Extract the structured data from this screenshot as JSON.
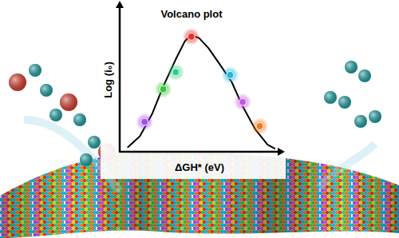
{
  "chart_data": {
    "type": "line",
    "title": "Volcano plot",
    "x_label": "ΔGH* (eV)",
    "y_label": "Log (i₀)",
    "xlim": [
      0,
      10
    ],
    "ylim": [
      0,
      10
    ],
    "tick_labels": false,
    "grid": false,
    "series": [
      {
        "type": "line",
        "color": "#000000",
        "line_style": "solid",
        "x": [
          0.5,
          1.3,
          2.1,
          2.8,
          3.6,
          4.2,
          4.6,
          5.1,
          5.7,
          6.4,
          7.2,
          7.9,
          8.7,
          9.5,
          10
        ],
        "values": [
          0.3,
          1.1,
          2.7,
          4.6,
          6.5,
          7.8,
          8.2,
          8.0,
          7.3,
          6.2,
          4.9,
          3.2,
          1.6,
          0.5,
          0.2
        ]
      },
      {
        "type": "scatter",
        "marker": "circle",
        "colors": [
          "#a64bf0",
          "#3cc43c",
          "#2ecf8a",
          "#e8302c",
          "#22b8e0",
          "#c855e0",
          "#f07a1e"
        ],
        "x": [
          1.6,
          2.8,
          3.6,
          4.6,
          7.1,
          7.9,
          9.0
        ],
        "values": [
          2.1,
          4.4,
          5.6,
          8.1,
          5.4,
          3.5,
          1.8
        ]
      }
    ]
  }
}
